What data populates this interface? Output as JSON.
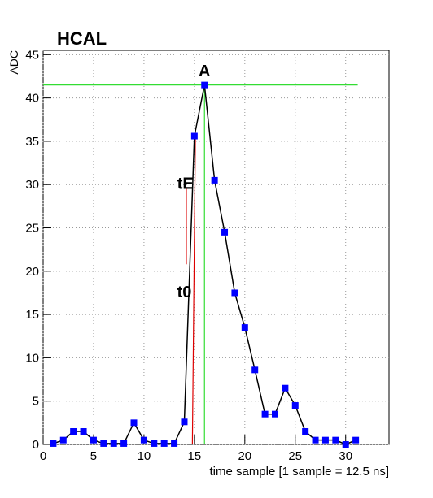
{
  "chart_data": {
    "type": "line",
    "title": "HCAL",
    "ylabel": "ADC",
    "xlabel": "time sample [1 sample = 12.5 ns]",
    "x": [
      1,
      2,
      3,
      4,
      5,
      6,
      7,
      8,
      9,
      10,
      11,
      12,
      13,
      14,
      15,
      16,
      17,
      18,
      19,
      20,
      21,
      22,
      23,
      24,
      25,
      26,
      27,
      28,
      29,
      30,
      31
    ],
    "values": [
      0.1,
      0.5,
      1.5,
      1.5,
      0.5,
      0.1,
      0.1,
      0.1,
      2.5,
      0.5,
      0.1,
      0.1,
      0.1,
      2.6,
      35.6,
      41.5,
      30.5,
      24.5,
      17.5,
      13.5,
      8.6,
      3.5,
      3.5,
      6.5,
      4.5,
      1.5,
      0.5,
      0.5,
      0.5,
      0.0,
      0.5
    ],
    "color": "#0000ff",
    "line_color": "#000000",
    "xlim": [
      0,
      34.3
    ],
    "ylim": [
      0,
      45.5
    ],
    "xticks": [
      0,
      5,
      10,
      15,
      20,
      25,
      30
    ],
    "yticks": [
      0,
      5,
      10,
      15,
      20,
      25,
      30,
      35,
      40,
      45
    ],
    "grid": true,
    "lines": [
      {
        "x": [
          0,
          31.2
        ],
        "y": [
          41.5,
          41.5
        ],
        "color": "#33dd33"
      },
      {
        "x": [
          16,
          16
        ],
        "y": [
          0,
          41.5
        ],
        "color": "#33dd33"
      },
      {
        "x": [
          14.8,
          15.1
        ],
        "y": [
          0,
          36
        ],
        "color": "#dd0000"
      },
      {
        "x": [
          14.2,
          14.2
        ],
        "y": [
          20.8,
          29.5
        ],
        "color": "#dd0000"
      }
    ],
    "annotations": [
      {
        "text": "A",
        "x": 16,
        "y": 42.5
      },
      {
        "text": "tE",
        "x": 14.1,
        "y": 29.5
      },
      {
        "text": "t0",
        "x": 14.0,
        "y": 17
      }
    ]
  }
}
